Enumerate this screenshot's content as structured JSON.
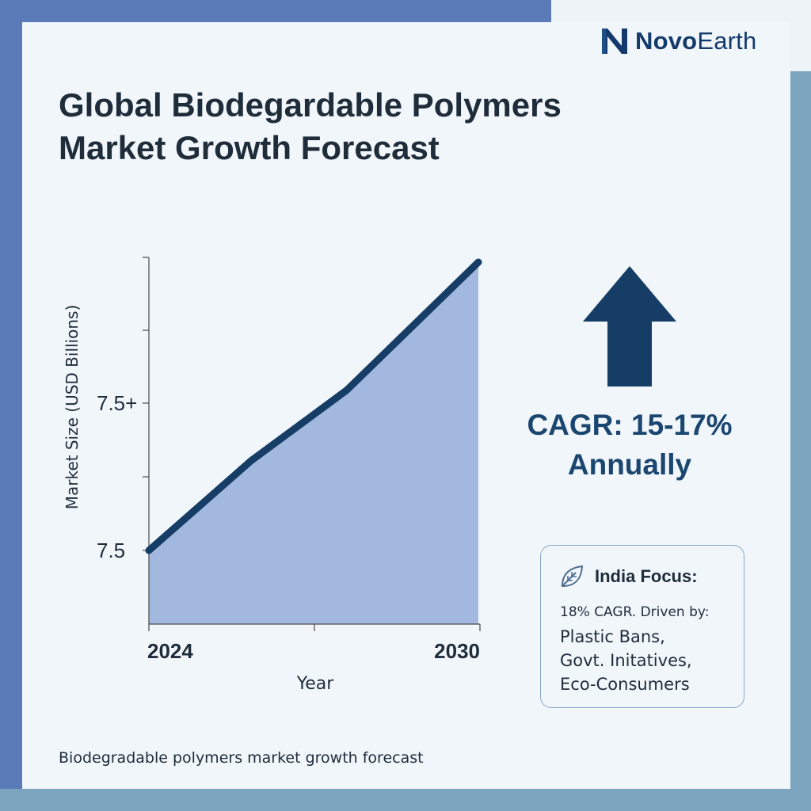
{
  "brand": {
    "name_bold": "Novo",
    "name_rest": "Earth"
  },
  "title_lines": [
    "Global Biodegardable Polymers",
    "Market Growth Forecast"
  ],
  "chart_data": {
    "type": "area",
    "xlabel": "Year",
    "ylabel": "Market Size (USD Billions)",
    "x_tick_labels": [
      "2024",
      "2030"
    ],
    "y_tick_labels": [
      "7.5",
      "7.5+"
    ],
    "x": [
      0,
      0.31,
      0.6,
      1
    ],
    "values": [
      0.1,
      0.38,
      0.6,
      1.0
    ],
    "grid": false,
    "legend": "none",
    "colors": {
      "line": "#163d66",
      "fill": "#a3b8de"
    }
  },
  "cagr": {
    "line1": "CAGR: 15-17%",
    "line2": "Annually"
  },
  "india": {
    "title": "India Focus:",
    "subtitle": "18% CAGR. Driven by:",
    "items": [
      "Plastic Bans,",
      "Govt. Initatives,",
      "Eco-Consumers"
    ]
  },
  "caption": "Biodegradable polymers market growth forecast",
  "icons": [
    "brand-logo-icon",
    "up-arrow-icon",
    "leaf-icon"
  ],
  "colors": {
    "navy": "#163d66",
    "frame_blue": "#5b7ab8",
    "frame_teal": "#7ba5bf",
    "background": "#f1f6fb"
  }
}
